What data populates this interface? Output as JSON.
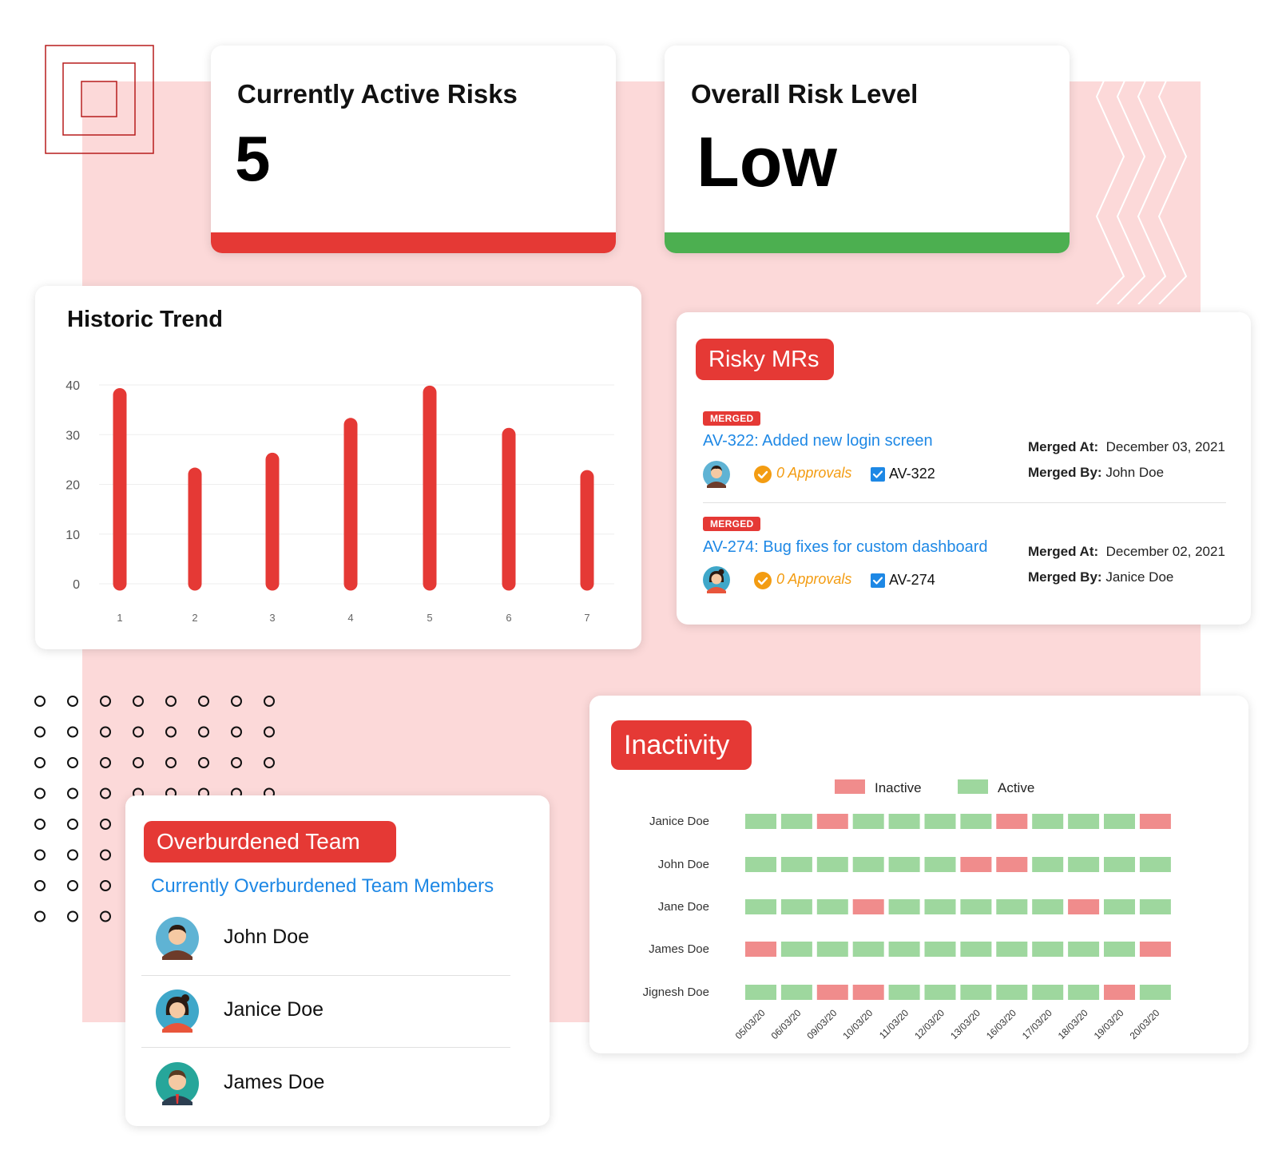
{
  "kpis": {
    "active_risks": {
      "title": "Currently Active Risks",
      "value": "5",
      "bar_color": "#e53935"
    },
    "risk_level": {
      "title": "Overall Risk Level",
      "value": "Low",
      "bar_color": "#4caf50"
    }
  },
  "historic_trend": {
    "title": "Historic Trend",
    "chart_data": {
      "type": "bar",
      "categories": [
        "1",
        "2",
        "3",
        "4",
        "5",
        "6",
        "7"
      ],
      "values": [
        38,
        22,
        25,
        32,
        38.5,
        30,
        21.5
      ],
      "ylim": [
        0,
        40
      ],
      "yticks": [
        "0",
        "10",
        "20",
        "30",
        "40"
      ],
      "xlabel": "",
      "ylabel": "",
      "grid": true,
      "bar_color": "#e53935"
    }
  },
  "risky_mrs": {
    "title": "Risky MRs",
    "items": [
      {
        "badge": "MERGED",
        "link": "AV-322: Added new login screen",
        "approvals": "0 Approvals",
        "id": "AV-322",
        "merged_at_label": "Merged At:",
        "merged_at": "December 03, 2021",
        "merged_by_label": "Merged By:",
        "merged_by": "John Doe",
        "avatar": "male-avatar-icon"
      },
      {
        "badge": "MERGED",
        "link": "AV-274: Bug fixes for custom dashboard",
        "approvals": "0 Approvals",
        "id": "AV-274",
        "merged_at_label": "Merged At:",
        "merged_at": "December 02, 2021",
        "merged_by_label": "Merged By:",
        "merged_by": "Janice Doe",
        "avatar": "female-avatar-icon"
      }
    ]
  },
  "overburdened": {
    "title": "Overburdened Team",
    "subtitle": "Currently Overburdened Team Members",
    "members": [
      {
        "name": "John Doe",
        "avatar": "male-avatar-icon"
      },
      {
        "name": "Janice Doe",
        "avatar": "female-avatar-icon"
      },
      {
        "name": "James Doe",
        "avatar": "male-avatar-icon"
      }
    ]
  },
  "inactivity": {
    "title": "Inactivity",
    "chart_data": {
      "type": "heatmap",
      "legend": [
        {
          "name": "Inactive",
          "color": "#f08c8c"
        },
        {
          "name": "Active",
          "color": "#9ed79e"
        }
      ],
      "rows": [
        "Janice Doe",
        "John Doe",
        "Jane Doe",
        "James Doe",
        "Jignesh Doe"
      ],
      "columns": [
        "05/03/20",
        "06/03/20",
        "09/03/20",
        "10/03/20",
        "11/03/20",
        "12/03/20",
        "13/03/20",
        "16/03/20",
        "17/03/20",
        "18/03/20",
        "19/03/20",
        "20/03/20"
      ],
      "values": [
        [
          1,
          1,
          0,
          1,
          1,
          1,
          1,
          0,
          1,
          1,
          1,
          0
        ],
        [
          1,
          1,
          1,
          1,
          1,
          1,
          0,
          0,
          1,
          1,
          1,
          1
        ],
        [
          1,
          1,
          1,
          0,
          1,
          1,
          1,
          1,
          1,
          0,
          1,
          1
        ],
        [
          0,
          1,
          1,
          1,
          1,
          1,
          1,
          1,
          1,
          1,
          1,
          0
        ],
        [
          1,
          1,
          0,
          0,
          1,
          1,
          1,
          1,
          1,
          1,
          0,
          1
        ]
      ],
      "value_legend": "1 = Active, 0 = Inactive"
    }
  },
  "colors": {
    "accent": "#e53935",
    "link": "#1e88e5",
    "good": "#4caf50",
    "warning": "#f39c12",
    "background_panel": "#fcd9d9"
  }
}
